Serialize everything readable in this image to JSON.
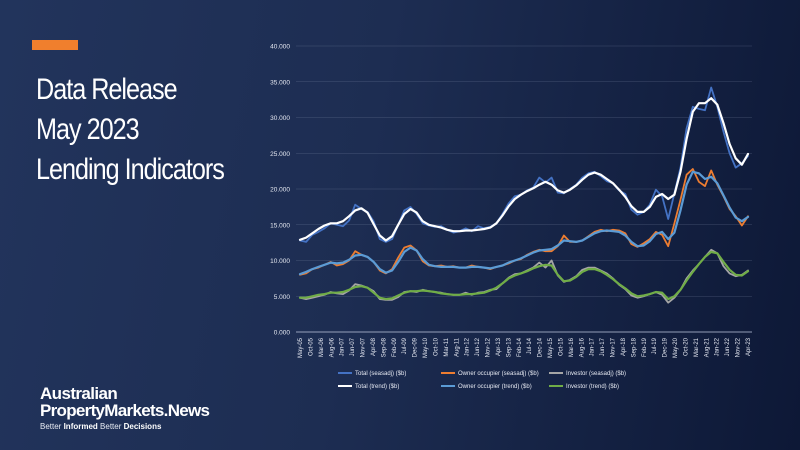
{
  "headline": {
    "lines": [
      "Data Release",
      "May 2023",
      "Lending Indicators"
    ]
  },
  "brand": {
    "name_line1": "Australian",
    "name_line2": "PropertyMarkets.News",
    "tag_part1": "Better ",
    "tag_bold1": "Informed",
    "tag_part2": " Better ",
    "tag_bold2": "Decisions"
  },
  "colors": {
    "accent": "#f07f2d",
    "background": "#1d2d52"
  },
  "chart_data": {
    "type": "line",
    "y_ticks": [
      "0.000",
      "5.000",
      "10.000",
      "15.000",
      "20.000",
      "25.000",
      "30.000",
      "35.000",
      "40.000"
    ],
    "ylim": [
      0,
      40000
    ],
    "x_ticks": [
      "May-05",
      "Oct-05",
      "Mar-06",
      "Aug-06",
      "Jan-07",
      "Jun-07",
      "Nov-07",
      "Apr-08",
      "Sep-08",
      "Feb-09",
      "Jul-09",
      "Dec-09",
      "May-10",
      "Oct-10",
      "Mar-11",
      "Aug-11",
      "Jan-12",
      "Jun-12",
      "Nov-12",
      "Apr-13",
      "Sep-13",
      "Feb-14",
      "Jul-14",
      "Dec-14",
      "May-15",
      "Oct-15",
      "Mar-16",
      "Aug-16",
      "Jan-17",
      "Jun-17",
      "Nov-17",
      "Apr-18",
      "Sep-18",
      "Feb-19",
      "Jul-19",
      "Dec-19",
      "May-20",
      "Oct-20",
      "Mar-21",
      "Aug-21",
      "Jan-22",
      "Jun-22",
      "Nov-22",
      "Apr-23"
    ],
    "legend": [
      {
        "label": "Total (seasadj) ($b)",
        "color": "#4472c4",
        "width": 1.8
      },
      {
        "label": "Owner occupier (seasadj) ($b)",
        "color": "#ed7d31",
        "width": 1.8
      },
      {
        "label": "Investor (seasadj) ($b)",
        "color": "#a5a5a5",
        "width": 1.8
      },
      {
        "label": "Total (trend) ($b)",
        "color": "#ffffff",
        "width": 2.2
      },
      {
        "label": "Owner occupier (trend) ($b)",
        "color": "#5b9bd5",
        "width": 2.2
      },
      {
        "label": "Investor (trend) ($b)",
        "color": "#70ad47",
        "width": 2.2
      }
    ],
    "legend_position": "bottom",
    "series": [
      {
        "name": "Total (seasadj) ($b)",
        "color": "#4472c4",
        "values": [
          12800,
          12600,
          13600,
          14000,
          14500,
          15200,
          15000,
          14800,
          15600,
          17800,
          17200,
          16800,
          15500,
          13000,
          12600,
          13000,
          15000,
          17000,
          17500,
          16500,
          15200,
          14900,
          14700,
          14800,
          14300,
          13900,
          14100,
          14500,
          14100,
          14800,
          14500,
          14700,
          15200,
          16500,
          18000,
          19000,
          19200,
          19800,
          20200,
          21600,
          20900,
          21600,
          19500,
          19400,
          20000,
          20600,
          21600,
          22200,
          22400,
          21800,
          21100,
          20800,
          19800,
          19300,
          17100,
          16400,
          16800,
          17800,
          19900,
          19000,
          15800,
          19400,
          23000,
          28500,
          31500,
          31200,
          31000,
          34200,
          31500,
          28000,
          25000,
          23000,
          23600,
          24600
        ]
      },
      {
        "name": "Owner occupier (seasadj) ($b)",
        "color": "#ed7d31",
        "values": [
          8000,
          8200,
          8800,
          9000,
          9400,
          9800,
          9300,
          9500,
          10000,
          11300,
          10800,
          10500,
          9800,
          8600,
          8200,
          8800,
          10400,
          11800,
          12100,
          11400,
          9900,
          9300,
          9200,
          9300,
          9100,
          9200,
          9000,
          9000,
          9300,
          9100,
          9000,
          8800,
          9100,
          9300,
          9600,
          10000,
          10200,
          10800,
          11200,
          11500,
          11300,
          11300,
          12000,
          13500,
          12600,
          12600,
          12800,
          13400,
          14000,
          14300,
          14100,
          14300,
          14200,
          13800,
          12300,
          11900,
          12400,
          13000,
          14000,
          13600,
          12000,
          15200,
          18500,
          22000,
          22800,
          21000,
          20400,
          22600,
          20600,
          19000,
          17200,
          16200,
          14900,
          16200
        ]
      },
      {
        "name": "Investor (seasadj) ($b)",
        "color": "#a5a5a5",
        "values": [
          4800,
          4600,
          4800,
          5000,
          5200,
          5600,
          5400,
          5300,
          5800,
          6700,
          6500,
          6200,
          5700,
          4600,
          4500,
          4500,
          4900,
          5600,
          5700,
          5600,
          5900,
          5700,
          5600,
          5500,
          5300,
          5200,
          5200,
          5500,
          5200,
          5500,
          5600,
          5900,
          6000,
          6800,
          7600,
          8100,
          8200,
          8600,
          9000,
          9700,
          9000,
          10000,
          7900,
          7000,
          7300,
          7800,
          8700,
          9000,
          9000,
          8600,
          8200,
          7500,
          6600,
          6000,
          5100,
          4800,
          5000,
          5300,
          5600,
          5200,
          4100,
          4800,
          5900,
          7500,
          8600,
          9500,
          10500,
          11500,
          11000,
          9200,
          8200,
          7800,
          8000,
          8600
        ]
      },
      {
        "name": "Total (trend) ($b)",
        "color": "#ffffff",
        "values": [
          12900,
          13200,
          13800,
          14400,
          14900,
          15200,
          15200,
          15500,
          16200,
          17000,
          17300,
          16700,
          15100,
          13500,
          12800,
          13400,
          15000,
          16500,
          17200,
          16700,
          15500,
          15000,
          14800,
          14600,
          14300,
          14100,
          14100,
          14200,
          14200,
          14300,
          14400,
          14600,
          15200,
          16300,
          17600,
          18600,
          19200,
          19700,
          20100,
          20600,
          21000,
          20600,
          19800,
          19500,
          19900,
          20500,
          21300,
          22000,
          22300,
          22000,
          21400,
          20800,
          19900,
          18900,
          17600,
          16800,
          16800,
          17500,
          18900,
          19300,
          18600,
          19200,
          22400,
          27000,
          30800,
          32000,
          32000,
          32700,
          31800,
          29200,
          26300,
          24300,
          23400,
          24900
        ]
      },
      {
        "name": "Owner occupier (trend) ($b)",
        "color": "#5b9bd5",
        "values": [
          8100,
          8400,
          8800,
          9100,
          9400,
          9700,
          9600,
          9700,
          10100,
          10700,
          10800,
          10500,
          9800,
          8800,
          8300,
          8600,
          9800,
          11200,
          11800,
          11400,
          10200,
          9400,
          9200,
          9100,
          9100,
          9100,
          9000,
          9000,
          9100,
          9100,
          9000,
          8900,
          9100,
          9300,
          9700,
          10000,
          10300,
          10700,
          11100,
          11400,
          11500,
          11600,
          12100,
          12800,
          12700,
          12600,
          12800,
          13300,
          13800,
          14100,
          14200,
          14100,
          14000,
          13500,
          12600,
          12000,
          12100,
          12700,
          13700,
          14000,
          13000,
          13900,
          17000,
          20600,
          22400,
          22200,
          21400,
          21700,
          20800,
          19100,
          17400,
          16000,
          15500,
          16100
        ]
      },
      {
        "name": "Investor (trend) ($b)",
        "color": "#70ad47",
        "values": [
          4800,
          4800,
          5000,
          5200,
          5300,
          5500,
          5500,
          5600,
          5900,
          6300,
          6400,
          6200,
          5500,
          4800,
          4600,
          4700,
          5100,
          5500,
          5700,
          5700,
          5800,
          5700,
          5600,
          5400,
          5300,
          5200,
          5200,
          5300,
          5300,
          5400,
          5500,
          5800,
          6200,
          6800,
          7500,
          7900,
          8200,
          8500,
          8900,
          9200,
          9400,
          9300,
          8000,
          7100,
          7200,
          7700,
          8400,
          8800,
          8800,
          8500,
          8000,
          7400,
          6700,
          6100,
          5400,
          5000,
          5100,
          5300,
          5600,
          5500,
          4600,
          5000,
          5900,
          7200,
          8400,
          9500,
          10500,
          11200,
          11000,
          9800,
          8700,
          8000,
          7900,
          8500
        ]
      }
    ]
  }
}
